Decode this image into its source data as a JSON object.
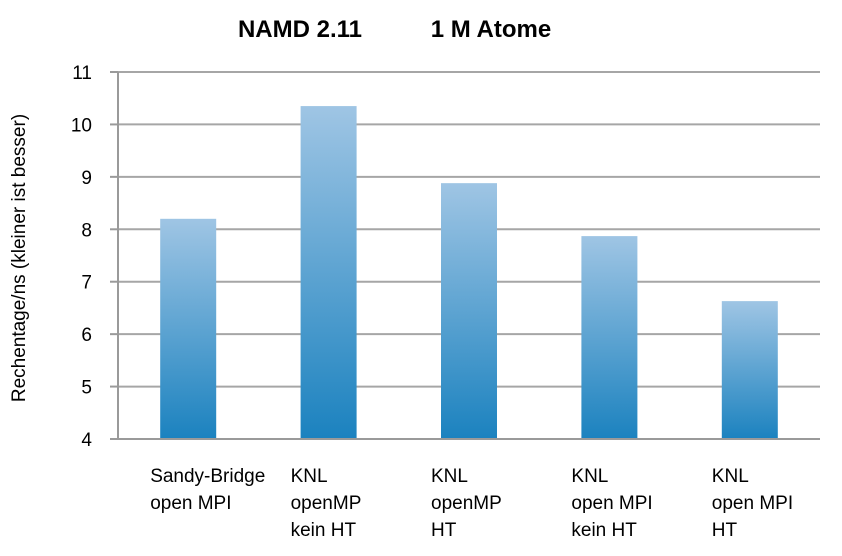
{
  "chart_data": {
    "type": "bar",
    "title_left": "NAMD 2.11",
    "title_right": "1 M Atome",
    "ylabel": "Rechentage/ns (kleiner ist besser)",
    "xlabel": "",
    "ylim": [
      4,
      11
    ],
    "yticks": [
      4,
      5,
      6,
      7,
      8,
      9,
      10,
      11
    ],
    "grid": true,
    "legend": "none",
    "categories": [
      [
        "Sandy-Bridge",
        "open MPI"
      ],
      [
        "KNL",
        "openMP",
        "kein HT"
      ],
      [
        "KNL",
        "openMP",
        "HT"
      ],
      [
        "KNL",
        "open MPI",
        "kein HT"
      ],
      [
        "KNL",
        "open MPI",
        "HT"
      ]
    ],
    "values": [
      8.2,
      10.35,
      8.88,
      7.87,
      6.63
    ],
    "colors": {
      "bar_top": "#9fc5e4",
      "bar_bottom": "#1b82bf",
      "grid": "#a6a6a6",
      "axis": "#9a9a9a"
    }
  }
}
